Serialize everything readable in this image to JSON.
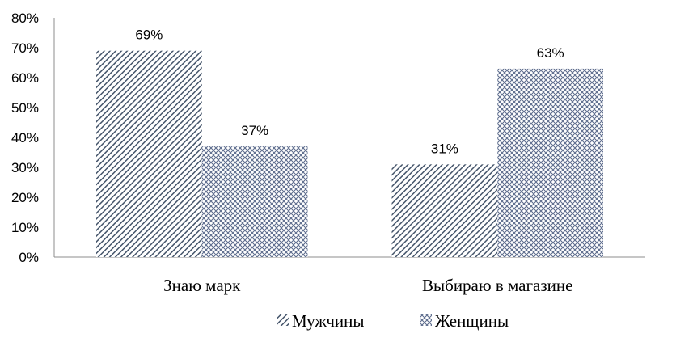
{
  "chart_data": {
    "type": "bar",
    "categories": [
      "Знаю марк",
      "Выбираю в магазине"
    ],
    "series": [
      {
        "name": "Мужчины",
        "values": [
          69,
          31
        ],
        "data_labels": [
          "69%",
          "31%"
        ],
        "pattern": "diagonal-hatch",
        "color": "#44546A"
      },
      {
        "name": "Женщины",
        "values": [
          37,
          63
        ],
        "data_labels": [
          "37%",
          "63%"
        ],
        "pattern": "cross-hatch",
        "color": "#5B6B8C"
      }
    ],
    "ylim": [
      0,
      80
    ],
    "y_ticks": [
      0,
      10,
      20,
      30,
      40,
      50,
      60,
      70,
      80
    ],
    "y_tick_labels": [
      "0%",
      "10%",
      "20%",
      "30%",
      "40%",
      "50%",
      "60%",
      "70%",
      "80%"
    ],
    "grid": false,
    "legend_position": "bottom"
  }
}
